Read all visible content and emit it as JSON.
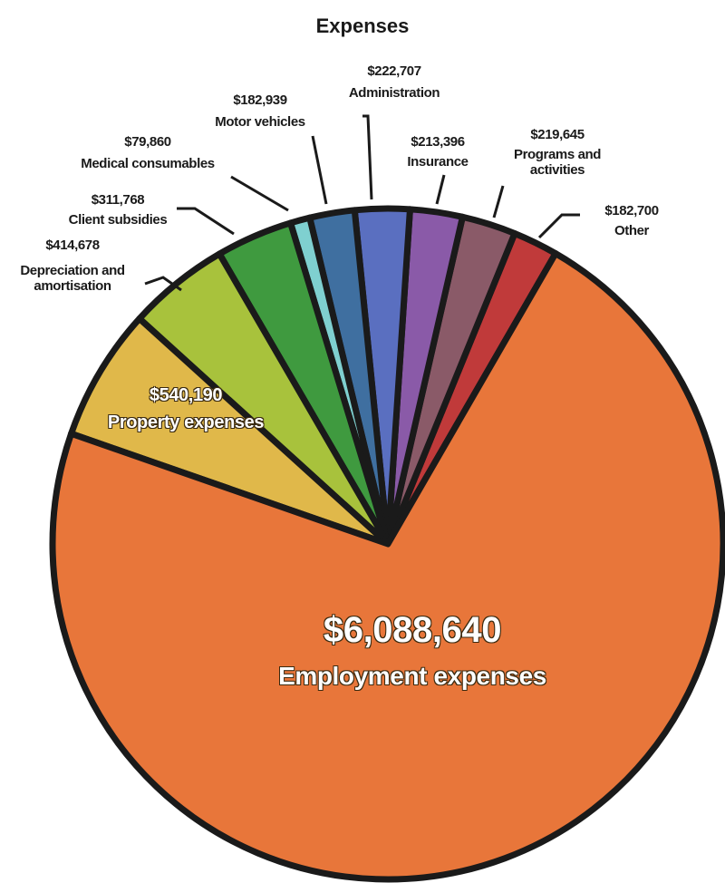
{
  "chart_data": {
    "type": "pie",
    "title": "Expenses",
    "categories": [
      "Employment expenses",
      "Property expenses",
      "Depreciation and amortisation",
      "Client subsidies",
      "Medical consumables",
      "Motor vehicles",
      "Administration",
      "Insurance",
      "Programs and activities",
      "Other"
    ],
    "values": [
      6088640,
      540190,
      414678,
      311768,
      79860,
      182939,
      222707,
      213396,
      219645,
      182700
    ],
    "value_labels": [
      "$6,088,640",
      "$540,190",
      "$414,678",
      "$311,768",
      "$79,860",
      "$182,939",
      "$222,707",
      "$213,396",
      "$219,645",
      "$182,700"
    ],
    "colors": [
      "#e8763a",
      "#e0b84a",
      "#a8c23c",
      "#3f9a3f",
      "#7fd0d0",
      "#3f6fa0",
      "#5a6fc0",
      "#8a5aa8",
      "#8a5a68",
      "#c03a3a"
    ]
  }
}
